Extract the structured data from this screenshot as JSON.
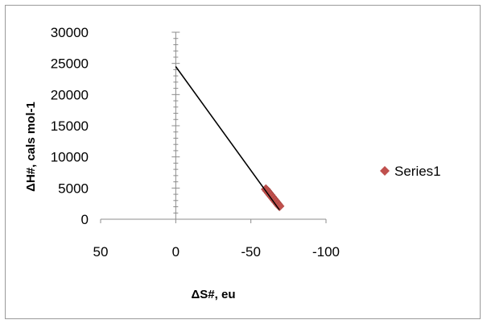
{
  "chart_data": {
    "type": "scatter",
    "title": "",
    "xlabel": "ΔS#, eu",
    "ylabel": "ΔH#, cals mol-1",
    "xlim": [
      50,
      -100
    ],
    "ylim": [
      0,
      30000
    ],
    "x_ticks": [
      50,
      0,
      -50,
      -100
    ],
    "y_ticks": [
      0,
      5000,
      10000,
      15000,
      20000,
      25000,
      30000
    ],
    "grid": false,
    "legend_position": "right",
    "series": [
      {
        "name": "Series1",
        "color": "#C0504D",
        "marker": "diamond",
        "x": [
          -60,
          -61,
          -62,
          -63,
          -64,
          -65,
          -66,
          -67,
          -68,
          -69
        ],
        "y": [
          4800,
          4500,
          4200,
          3900,
          3600,
          3300,
          3000,
          2700,
          2400,
          2100
        ]
      }
    ],
    "trendline": {
      "color": "#000000",
      "x": [
        0,
        -69
      ],
      "y": [
        24500,
        1500
      ]
    }
  }
}
